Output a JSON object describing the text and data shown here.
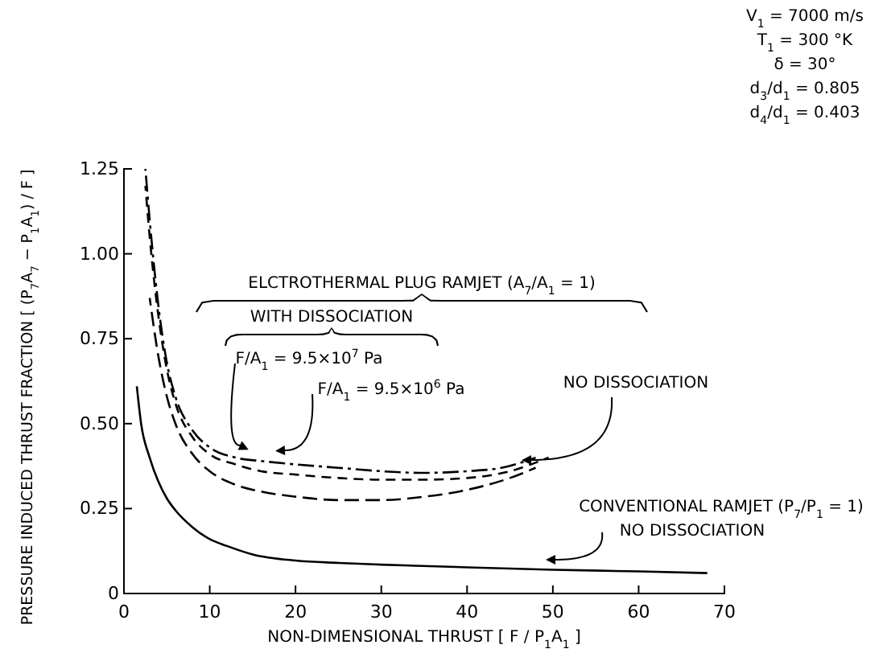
{
  "chart_data": {
    "type": "line",
    "xlabel": "NON-DIMENSIONAL THRUST  [ F / P$_{1}$A$_{1}$ ]",
    "ylabel": "PRESSURE INDUCED THRUST FRACTION [ (P$_{7}$A$_{7}$ − P$_{1}$A$_{1}$) / F ]",
    "xlim": [
      0,
      70
    ],
    "xticks": [
      0,
      10,
      20,
      30,
      40,
      50,
      60,
      70
    ],
    "ylim": [
      0,
      1.25
    ],
    "yticks": [
      0,
      0.25,
      {
        "value": 0.5,
        "label": "0.50"
      },
      0.75,
      {
        "value": 1,
        "label": "1.00"
      },
      1.25
    ],
    "series": [
      {
        "color": "#000000",
        "line_style": "solid",
        "x": [
          1.5,
          2,
          3,
          4,
          5,
          6,
          8,
          10,
          12,
          15,
          20,
          25,
          30,
          40,
          50,
          60,
          68
        ],
        "values": [
          0.61,
          0.5,
          0.4,
          0.33,
          0.28,
          0.245,
          0.195,
          0.16,
          0.14,
          0.115,
          0.097,
          0.09,
          0.085,
          0.077,
          0.07,
          0.065,
          0.06
        ]
      },
      {
        "color": "#000000",
        "line_style": "dashed",
        "x": [
          2.5,
          3,
          4,
          5,
          6,
          8,
          10,
          13,
          16,
          20,
          25,
          30,
          35,
          40,
          44,
          48
        ],
        "values": [
          1.25,
          1.1,
          0.85,
          0.68,
          0.58,
          0.48,
          0.43,
          0.4,
          0.39,
          0.38,
          0.37,
          0.36,
          0.355,
          0.36,
          0.37,
          0.4
        ]
      },
      {
        "color": "#000000",
        "line_style": "dashed",
        "x": [
          2.5,
          3,
          4,
          5,
          6,
          8,
          10,
          13,
          16,
          20,
          25,
          30,
          35,
          40,
          45,
          49.5
        ],
        "values": [
          1.2,
          1.05,
          0.82,
          0.66,
          0.56,
          0.46,
          0.41,
          0.38,
          0.36,
          0.35,
          0.34,
          0.335,
          0.335,
          0.34,
          0.36,
          0.4
        ]
      },
      {
        "color": "#000000",
        "line_style": "dashed",
        "x": [
          3,
          4,
          5,
          6,
          8,
          10,
          13,
          16,
          20,
          25,
          30,
          35,
          40,
          45,
          48
        ],
        "values": [
          0.87,
          0.7,
          0.58,
          0.5,
          0.41,
          0.36,
          0.32,
          0.3,
          0.285,
          0.275,
          0.275,
          0.285,
          0.305,
          0.34,
          0.37
        ]
      }
    ],
    "annotations": [
      "V$_{1}$ = 7000 m/s",
      "T$_{1}$ = 300 °K",
      "δ = 30°",
      "d$_{3}$/d$_{1}$ = 0.805",
      "d$_{4}$/d$_{1}$ = 0.403",
      "ELCTROTHERMAL PLUG RAMJET (A$_{7}$/A$_{1}$ = 1)",
      "WITH DISSOCIATION",
      "F/A$_{1}$ = 9.5×10$^{7}$ Pa",
      "F/A$_{1}$ = 9.5×10$^{6}$ Pa",
      "NO DISSOCIATION",
      "CONVENTIONAL RAMJET (P$_{7}$/P$_{1}$ = 1)",
      "NO DISSOCIATION"
    ]
  }
}
